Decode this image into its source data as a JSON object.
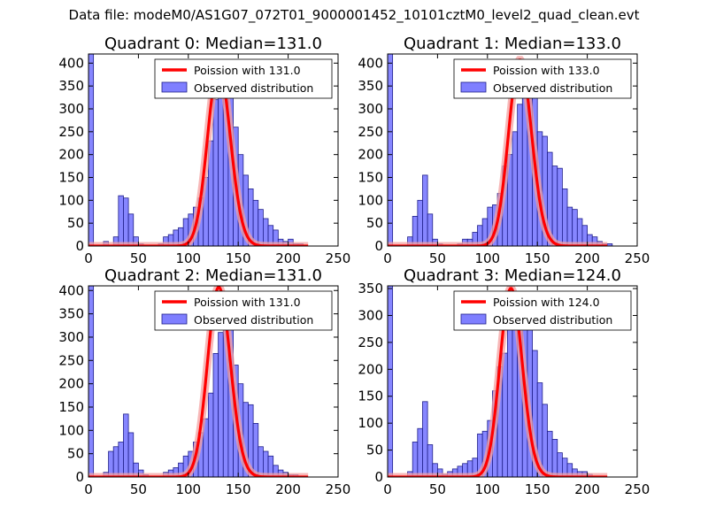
{
  "suptitle": "Data file: modeM0/AS1G07_072T01_9000001452_10101cztM0_level2_quad_clean.evt",
  "colors": {
    "bar_fill": "#7f7fff",
    "bar_edge": "#1f1f8a",
    "poisson": "#ff0000",
    "poisson_halo": "#f4a0a0"
  },
  "chart_data": [
    {
      "type": "bar",
      "title": "Quadrant 0: Median=131.0",
      "median": 131.0,
      "xlim": [
        0,
        250
      ],
      "ylim": [
        0,
        420
      ],
      "xticks": [
        0,
        50,
        100,
        150,
        200,
        250
      ],
      "yticks": [
        0,
        50,
        100,
        150,
        200,
        250,
        300,
        350,
        400
      ],
      "bin_width": 5,
      "bins": [
        [
          0,
          420
        ],
        [
          15,
          10
        ],
        [
          25,
          20
        ],
        [
          30,
          110
        ],
        [
          35,
          105
        ],
        [
          40,
          70
        ],
        [
          45,
          20
        ],
        [
          50,
          5
        ],
        [
          70,
          5
        ],
        [
          75,
          20
        ],
        [
          80,
          25
        ],
        [
          85,
          35
        ],
        [
          90,
          40
        ],
        [
          95,
          60
        ],
        [
          100,
          70
        ],
        [
          105,
          85
        ],
        [
          110,
          105
        ],
        [
          115,
          150
        ],
        [
          120,
          230
        ],
        [
          125,
          320
        ],
        [
          130,
          355
        ],
        [
          135,
          380
        ],
        [
          140,
          330
        ],
        [
          145,
          260
        ],
        [
          150,
          200
        ],
        [
          155,
          155
        ],
        [
          160,
          125
        ],
        [
          165,
          100
        ],
        [
          170,
          80
        ],
        [
          175,
          60
        ],
        [
          180,
          45
        ],
        [
          185,
          35
        ],
        [
          190,
          15
        ],
        [
          195,
          10
        ],
        [
          200,
          15
        ],
        [
          205,
          5
        ],
        [
          210,
          5
        ]
      ],
      "legend": [
        "Poission with 131.0",
        "Observed distribution"
      ],
      "legend_position": "top-right"
    },
    {
      "type": "bar",
      "title": "Quadrant 1: Median=133.0",
      "median": 133.0,
      "xlim": [
        0,
        250
      ],
      "ylim": [
        0,
        420
      ],
      "xticks": [
        0,
        50,
        100,
        150,
        200,
        250
      ],
      "yticks": [
        0,
        50,
        100,
        150,
        200,
        250,
        300,
        350,
        400
      ],
      "bin_width": 5,
      "bins": [
        [
          0,
          420
        ],
        [
          20,
          20
        ],
        [
          25,
          65
        ],
        [
          30,
          100
        ],
        [
          35,
          155
        ],
        [
          40,
          70
        ],
        [
          45,
          15
        ],
        [
          50,
          5
        ],
        [
          70,
          5
        ],
        [
          75,
          15
        ],
        [
          80,
          15
        ],
        [
          85,
          30
        ],
        [
          90,
          45
        ],
        [
          95,
          60
        ],
        [
          100,
          85
        ],
        [
          105,
          90
        ],
        [
          110,
          115
        ],
        [
          115,
          175
        ],
        [
          120,
          200
        ],
        [
          125,
          250
        ],
        [
          130,
          310
        ],
        [
          135,
          395
        ],
        [
          140,
          395
        ],
        [
          145,
          345
        ],
        [
          150,
          250
        ],
        [
          155,
          240
        ],
        [
          160,
          205
        ],
        [
          165,
          175
        ],
        [
          170,
          170
        ],
        [
          175,
          125
        ],
        [
          180,
          85
        ],
        [
          185,
          80
        ],
        [
          190,
          60
        ],
        [
          195,
          45
        ],
        [
          200,
          25
        ],
        [
          205,
          20
        ],
        [
          210,
          10
        ],
        [
          215,
          5
        ],
        [
          220,
          5
        ]
      ],
      "legend": [
        "Poission with 133.0",
        "Observed distribution"
      ],
      "legend_position": "top-right"
    },
    {
      "type": "bar",
      "title": "Quadrant 2: Median=131.0",
      "median": 131.0,
      "xlim": [
        0,
        250
      ],
      "ylim": [
        0,
        410
      ],
      "xticks": [
        0,
        50,
        100,
        150,
        200,
        250
      ],
      "yticks": [
        0,
        50,
        100,
        150,
        200,
        250,
        300,
        350,
        400
      ],
      "bin_width": 5,
      "bins": [
        [
          0,
          410
        ],
        [
          15,
          10
        ],
        [
          20,
          55
        ],
        [
          25,
          65
        ],
        [
          30,
          75
        ],
        [
          35,
          135
        ],
        [
          40,
          95
        ],
        [
          45,
          30
        ],
        [
          50,
          15
        ],
        [
          55,
          5
        ],
        [
          75,
          10
        ],
        [
          80,
          15
        ],
        [
          85,
          20
        ],
        [
          90,
          30
        ],
        [
          95,
          45
        ],
        [
          100,
          55
        ],
        [
          105,
          75
        ],
        [
          110,
          95
        ],
        [
          115,
          125
        ],
        [
          120,
          180
        ],
        [
          125,
          265
        ],
        [
          130,
          310
        ],
        [
          135,
          395
        ],
        [
          140,
          340
        ],
        [
          145,
          240
        ],
        [
          150,
          200
        ],
        [
          155,
          160
        ],
        [
          160,
          155
        ],
        [
          165,
          115
        ],
        [
          170,
          65
        ],
        [
          175,
          55
        ],
        [
          180,
          45
        ],
        [
          185,
          25
        ],
        [
          190,
          15
        ],
        [
          195,
          10
        ],
        [
          200,
          5
        ],
        [
          205,
          5
        ]
      ],
      "legend": [
        "Poission with 131.0",
        "Observed distribution"
      ],
      "legend_position": "top-right"
    },
    {
      "type": "bar",
      "title": "Quadrant 3: Median=124.0",
      "median": 124.0,
      "xlim": [
        0,
        250
      ],
      "ylim": [
        0,
        355
      ],
      "xticks": [
        0,
        50,
        100,
        150,
        200,
        250
      ],
      "yticks": [
        0,
        50,
        100,
        150,
        200,
        250,
        300,
        350
      ],
      "bin_width": 5,
      "bins": [
        [
          0,
          355
        ],
        [
          20,
          10
        ],
        [
          25,
          65
        ],
        [
          30,
          90
        ],
        [
          35,
          140
        ],
        [
          40,
          60
        ],
        [
          45,
          25
        ],
        [
          50,
          15
        ],
        [
          55,
          5
        ],
        [
          60,
          10
        ],
        [
          65,
          15
        ],
        [
          70,
          20
        ],
        [
          75,
          25
        ],
        [
          80,
          30
        ],
        [
          85,
          35
        ],
        [
          90,
          80
        ],
        [
          95,
          85
        ],
        [
          100,
          105
        ],
        [
          105,
          160
        ],
        [
          110,
          205
        ],
        [
          115,
          230
        ],
        [
          120,
          300
        ],
        [
          125,
          340
        ],
        [
          130,
          325
        ],
        [
          135,
          305
        ],
        [
          140,
          280
        ],
        [
          145,
          235
        ],
        [
          150,
          175
        ],
        [
          155,
          135
        ],
        [
          160,
          85
        ],
        [
          165,
          70
        ],
        [
          170,
          45
        ],
        [
          175,
          35
        ],
        [
          180,
          25
        ],
        [
          185,
          15
        ],
        [
          190,
          10
        ],
        [
          195,
          10
        ],
        [
          200,
          5
        ]
      ],
      "legend": [
        "Poission with 124.0",
        "Observed distribution"
      ],
      "legend_position": "top-right"
    }
  ]
}
